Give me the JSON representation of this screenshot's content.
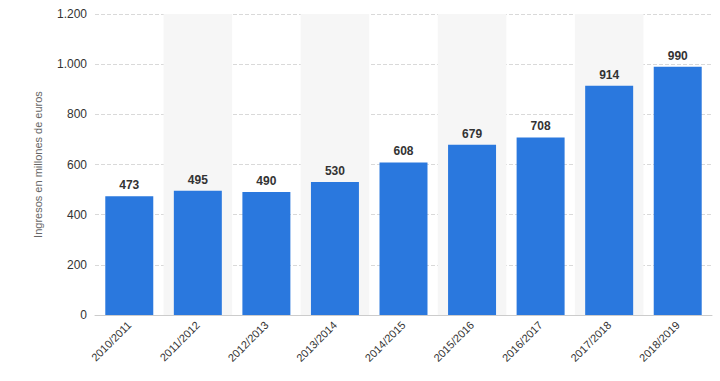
{
  "chart_data": {
    "type": "bar",
    "y_label": "Ingresos en millones de euros",
    "categories": [
      "2010/2011",
      "2011/2012",
      "2012/2013",
      "2013/2014",
      "2014/2015",
      "2015/2016",
      "2016/2017",
      "2017/2018",
      "2018/2019"
    ],
    "values": [
      473,
      495,
      490,
      530,
      608,
      679,
      708,
      914,
      990
    ],
    "color": "#2a78de",
    "ylim": [
      0,
      1200
    ],
    "yticks": [
      0,
      200,
      400,
      600,
      800,
      {
        "value": 1000,
        "label": "1.000"
      },
      {
        "value": 1200,
        "label": "1.200"
      }
    ],
    "grid": true,
    "data_labels": true
  }
}
